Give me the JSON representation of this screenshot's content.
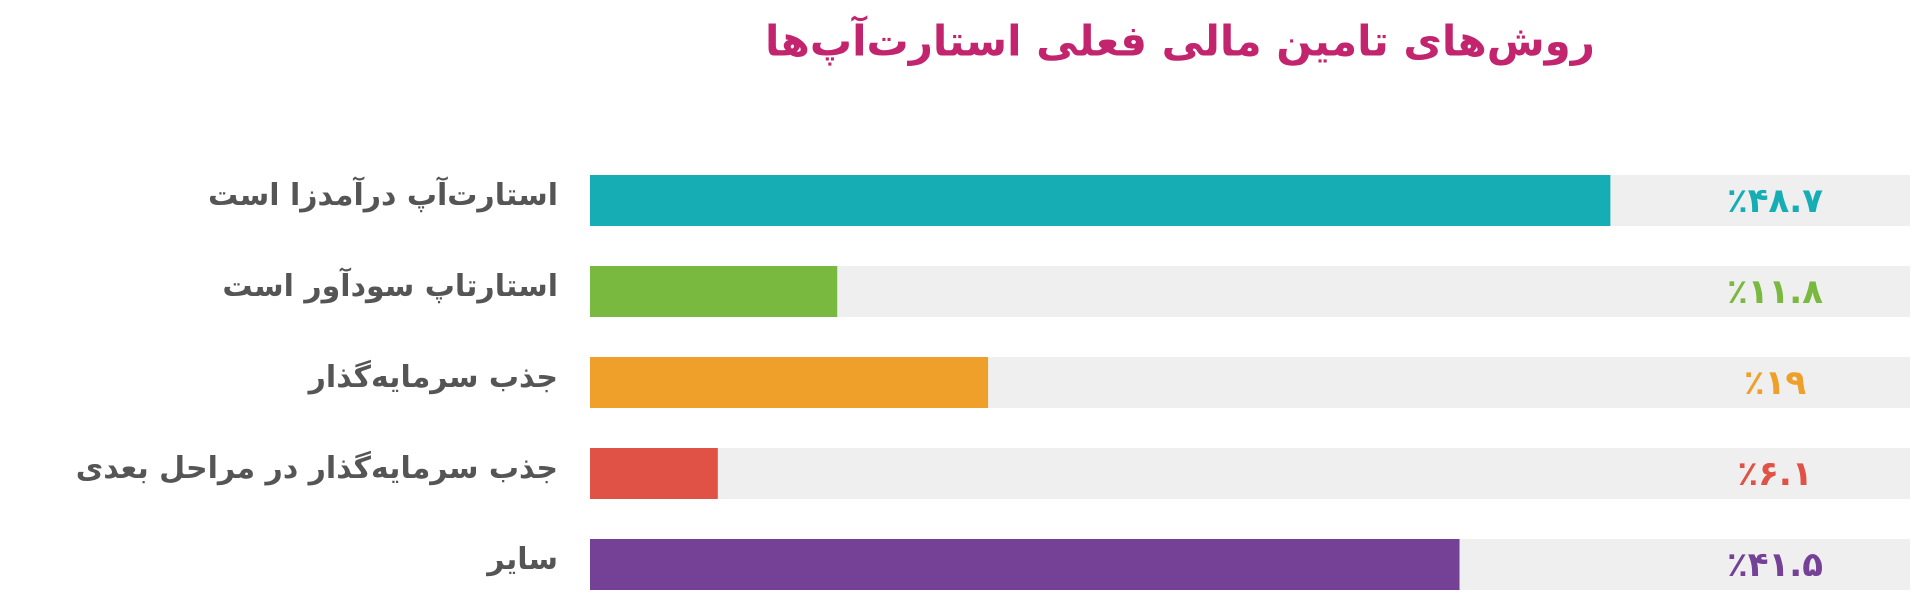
{
  "chart_data": {
    "type": "bar",
    "orientation": "horizontal",
    "title": "روش‌های تامین مالی فعلی استارت‌آپ‌ها",
    "categories": [
      "استارت‌آپ درآمدزا است",
      "استارتاپ سودآور است",
      "جذب سرمایه‌گذار",
      "جذب سرمایه‌گذار در مراحل بعدی",
      "سایر"
    ],
    "values": [
      48.7,
      11.8,
      19,
      6.1,
      41.5
    ],
    "value_labels": [
      "٪۴۸.۷",
      "٪۱۱.۸",
      "٪۱۹",
      "٪۶.۱",
      "٪۴۱.۵"
    ],
    "colors": [
      "#17adb5",
      "#7ab93f",
      "#eea02a",
      "#e05246",
      "#744196"
    ],
    "xlim": [
      0,
      63
    ]
  }
}
